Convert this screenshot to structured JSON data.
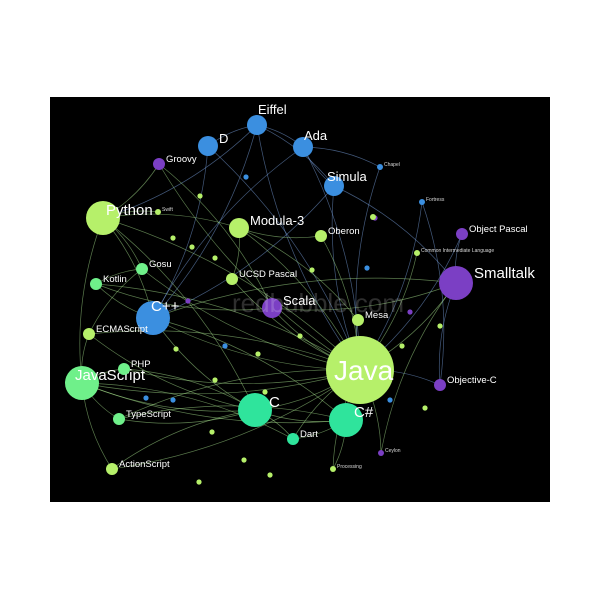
{
  "colors": {
    "background": "#000000",
    "poster": "#ffffff",
    "edge": "#a6e08c",
    "edge_blue": "#7aa3e0",
    "green_light": "#b6f06a",
    "green": "#6ff08a",
    "teal": "#2fe49c",
    "blue": "#3b8fe0",
    "purple": "#7b3fc4"
  },
  "watermark": "redbubble.com",
  "nodes": [
    {
      "id": "java",
      "label": "Java",
      "color": "green_light",
      "size": "huge"
    },
    {
      "id": "c",
      "label": "C",
      "color": "teal",
      "size": "big"
    },
    {
      "id": "csharp",
      "label": "C#",
      "color": "teal",
      "size": "big"
    },
    {
      "id": "cpp",
      "label": "C++",
      "color": "blue",
      "size": "big"
    },
    {
      "id": "python",
      "label": "Python",
      "color": "green_light",
      "size": "big"
    },
    {
      "id": "javascript",
      "label": "JavaScript",
      "color": "green",
      "size": "big"
    },
    {
      "id": "smalltalk",
      "label": "Smalltalk",
      "color": "purple",
      "size": "big"
    },
    {
      "id": "eiffel",
      "label": "Eiffel",
      "color": "blue",
      "size": "mid"
    },
    {
      "id": "ada",
      "label": "Ada",
      "color": "blue",
      "size": "mid"
    },
    {
      "id": "simula",
      "label": "Simula",
      "color": "blue",
      "size": "mid"
    },
    {
      "id": "d",
      "label": "D",
      "color": "blue",
      "size": "mid"
    },
    {
      "id": "groovy",
      "label": "Groovy",
      "color": "purple",
      "size": "small"
    },
    {
      "id": "modula3",
      "label": "Modula-3",
      "color": "green_light",
      "size": "mid"
    },
    {
      "id": "scala",
      "label": "Scala",
      "color": "purple",
      "size": "mid"
    },
    {
      "id": "objectpascal",
      "label": "Object Pascal",
      "color": "purple",
      "size": "small"
    },
    {
      "id": "objectivec",
      "label": "Objective-C",
      "color": "purple",
      "size": "small"
    },
    {
      "id": "kotlin",
      "label": "Kotlin",
      "color": "green",
      "size": "small"
    },
    {
      "id": "gosu",
      "label": "Gosu",
      "color": "green",
      "size": "small"
    },
    {
      "id": "ecmascript",
      "label": "ECMAScript",
      "color": "green_light",
      "size": "small"
    },
    {
      "id": "php",
      "label": "PHP",
      "color": "green",
      "size": "small"
    },
    {
      "id": "typescript",
      "label": "TypeScript",
      "color": "green",
      "size": "small"
    },
    {
      "id": "actionscript",
      "label": "ActionScript",
      "color": "green_light",
      "size": "small"
    },
    {
      "id": "dart",
      "label": "Dart",
      "color": "teal",
      "size": "small"
    },
    {
      "id": "ucsdpascal",
      "label": "UCSD Pascal",
      "color": "green_light",
      "size": "small"
    },
    {
      "id": "oberon",
      "label": "Oberon",
      "color": "green_light",
      "size": "small"
    },
    {
      "id": "mesa",
      "label": "Mesa",
      "color": "green_light",
      "size": "small"
    },
    {
      "id": "swift",
      "label": "Swift",
      "color": "green_light",
      "size": "tiny"
    },
    {
      "id": "chapel",
      "label": "Chapel",
      "color": "blue",
      "size": "tiny"
    },
    {
      "id": "fortress",
      "label": "Fortress",
      "color": "blue",
      "size": "tiny"
    },
    {
      "id": "ceylon",
      "label": "Ceylon",
      "color": "purple",
      "size": "tiny"
    },
    {
      "id": "processing",
      "label": "Processing",
      "color": "green_light",
      "size": "tiny"
    },
    {
      "id": "cil",
      "label": "Common Intermediate Language",
      "color": "green_light",
      "size": "tiny"
    },
    {
      "id": "clu",
      "label": "",
      "color": "green_light",
      "size": "tiny"
    }
  ],
  "edges": [
    [
      "java",
      "c"
    ],
    [
      "java",
      "csharp"
    ],
    [
      "java",
      "cpp"
    ],
    [
      "java",
      "python"
    ],
    [
      "java",
      "javascript"
    ],
    [
      "java",
      "smalltalk"
    ],
    [
      "java",
      "eiffel"
    ],
    [
      "java",
      "ada"
    ],
    [
      "java",
      "simula"
    ],
    [
      "java",
      "d"
    ],
    [
      "java",
      "groovy"
    ],
    [
      "java",
      "modula3"
    ],
    [
      "java",
      "scala"
    ],
    [
      "java",
      "objectpascal"
    ],
    [
      "java",
      "objectivec"
    ],
    [
      "java",
      "kotlin"
    ],
    [
      "java",
      "gosu"
    ],
    [
      "java",
      "ecmascript"
    ],
    [
      "java",
      "php"
    ],
    [
      "java",
      "typescript"
    ],
    [
      "java",
      "actionscript"
    ],
    [
      "java",
      "dart"
    ],
    [
      "java",
      "ucsdpascal"
    ],
    [
      "java",
      "oberon"
    ],
    [
      "java",
      "mesa"
    ],
    [
      "java",
      "processing"
    ],
    [
      "java",
      "ceylon"
    ],
    [
      "java",
      "cil"
    ],
    [
      "java",
      "chapel"
    ],
    [
      "java",
      "fortress"
    ],
    [
      "c",
      "cpp"
    ],
    [
      "c",
      "python"
    ],
    [
      "c",
      "javascript"
    ],
    [
      "c",
      "csharp"
    ],
    [
      "c",
      "typescript"
    ],
    [
      "c",
      "actionscript"
    ],
    [
      "c",
      "dart"
    ],
    [
      "c",
      "php"
    ],
    [
      "c",
      "ecmascript"
    ],
    [
      "cpp",
      "python"
    ],
    [
      "cpp",
      "kotlin"
    ],
    [
      "cpp",
      "simula"
    ],
    [
      "cpp",
      "ada"
    ],
    [
      "cpp",
      "d"
    ],
    [
      "cpp",
      "csharp"
    ],
    [
      "cpp",
      "eiffel"
    ],
    [
      "cpp",
      "smalltalk"
    ],
    [
      "python",
      "groovy"
    ],
    [
      "python",
      "modula3"
    ],
    [
      "python",
      "eiffel"
    ],
    [
      "python",
      "swift"
    ],
    [
      "python",
      "javascript"
    ],
    [
      "python",
      "gosu"
    ],
    [
      "javascript",
      "typescript"
    ],
    [
      "javascript",
      "ecmascript"
    ],
    [
      "javascript",
      "actionscript"
    ],
    [
      "javascript",
      "php"
    ],
    [
      "javascript",
      "csharp"
    ],
    [
      "javascript",
      "dart"
    ],
    [
      "smalltalk",
      "objectivec"
    ],
    [
      "smalltalk",
      "objectpascal"
    ],
    [
      "smalltalk",
      "simula"
    ],
    [
      "smalltalk",
      "scala"
    ],
    [
      "smalltalk",
      "ceylon"
    ],
    [
      "eiffel",
      "ada"
    ],
    [
      "eiffel",
      "d"
    ],
    [
      "eiffel",
      "simula"
    ],
    [
      "ada",
      "simula"
    ],
    [
      "ada",
      "chapel"
    ],
    [
      "modula3",
      "oberon"
    ],
    [
      "modula3",
      "ucsdpascal"
    ],
    [
      "mesa",
      "modula3"
    ],
    [
      "scala",
      "kotlin"
    ],
    [
      "scala",
      "groovy"
    ],
    [
      "csharp",
      "dart"
    ],
    [
      "csharp",
      "typescript"
    ],
    [
      "csharp",
      "processing"
    ],
    [
      "objectivec",
      "fortress"
    ],
    [
      "kotlin",
      "gosu"
    ],
    [
      "gosu",
      "ecmascript"
    ]
  ]
}
